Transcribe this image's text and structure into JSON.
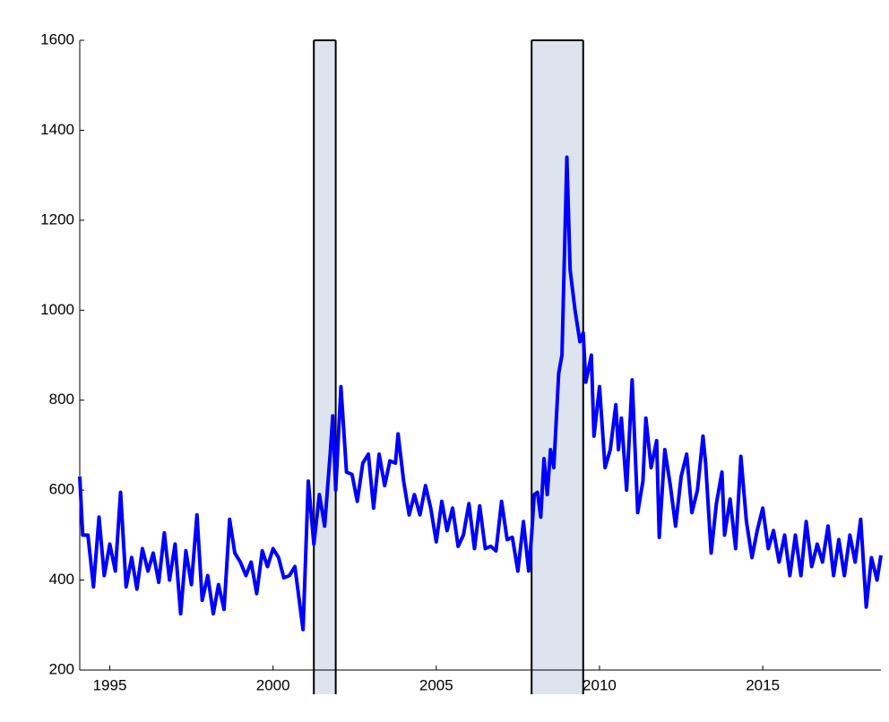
{
  "chart_data": {
    "type": "line",
    "x": [
      1994.08,
      1994.17,
      1994.33,
      1994.5,
      1994.67,
      1994.83,
      1995.0,
      1995.17,
      1995.33,
      1995.5,
      1995.67,
      1995.83,
      1996.0,
      1996.17,
      1996.33,
      1996.5,
      1996.67,
      1996.83,
      1997.0,
      1997.17,
      1997.33,
      1997.5,
      1997.67,
      1997.83,
      1998.0,
      1998.17,
      1998.33,
      1998.5,
      1998.67,
      1998.83,
      1999.0,
      1999.17,
      1999.33,
      1999.5,
      1999.67,
      1999.83,
      2000.0,
      2000.17,
      2000.33,
      2000.5,
      2000.67,
      2000.83,
      2000.92,
      2001.08,
      2001.25,
      2001.42,
      2001.58,
      2001.75,
      2001.83,
      2001.92,
      2002.08,
      2002.25,
      2002.42,
      2002.58,
      2002.75,
      2002.92,
      2003.08,
      2003.25,
      2003.42,
      2003.58,
      2003.75,
      2003.83,
      2004.0,
      2004.17,
      2004.33,
      2004.5,
      2004.67,
      2004.83,
      2005.0,
      2005.17,
      2005.33,
      2005.5,
      2005.67,
      2005.83,
      2006.0,
      2006.17,
      2006.33,
      2006.5,
      2006.67,
      2006.83,
      2007.0,
      2007.17,
      2007.33,
      2007.5,
      2007.67,
      2007.83,
      2007.92,
      2008.0,
      2008.1,
      2008.2,
      2008.3,
      2008.4,
      2008.5,
      2008.6,
      2008.75,
      2008.85,
      2009.0,
      2009.1,
      2009.25,
      2009.4,
      2009.5,
      2009.58,
      2009.75,
      2009.83,
      2010.0,
      2010.17,
      2010.33,
      2010.5,
      2010.58,
      2010.67,
      2010.83,
      2011.0,
      2011.17,
      2011.33,
      2011.42,
      2011.58,
      2011.75,
      2011.83,
      2012.0,
      2012.17,
      2012.33,
      2012.5,
      2012.67,
      2012.83,
      2013.0,
      2013.17,
      2013.25,
      2013.42,
      2013.58,
      2013.75,
      2013.83,
      2014.0,
      2014.17,
      2014.33,
      2014.5,
      2014.67,
      2014.83,
      2015.0,
      2015.17,
      2015.33,
      2015.5,
      2015.67,
      2015.83,
      2016.0,
      2016.17,
      2016.33,
      2016.5,
      2016.67,
      2016.83,
      2017.0,
      2017.17,
      2017.33,
      2017.5,
      2017.67,
      2017.83,
      2018.0,
      2018.17,
      2018.33,
      2018.5,
      2018.62
    ],
    "series": [
      {
        "color": "#0000ff",
        "values": [
          630,
          500,
          500,
          385,
          540,
          410,
          480,
          420,
          595,
          385,
          450,
          380,
          470,
          420,
          460,
          395,
          505,
          400,
          480,
          325,
          465,
          390,
          545,
          355,
          410,
          325,
          390,
          335,
          535,
          460,
          440,
          410,
          440,
          370,
          465,
          430,
          470,
          450,
          405,
          410,
          430,
          340,
          290,
          620,
          480,
          590,
          520,
          680,
          765,
          600,
          830,
          640,
          635,
          575,
          660,
          680,
          560,
          680,
          610,
          665,
          660,
          725,
          620,
          545,
          590,
          545,
          610,
          560,
          485,
          575,
          510,
          560,
          475,
          500,
          570,
          470,
          565,
          470,
          475,
          465,
          575,
          490,
          495,
          420,
          530,
          420,
          500,
          590,
          595,
          540,
          670,
          590,
          690,
          650,
          860,
          900,
          1340,
          1090,
          1000,
          930,
          950,
          840,
          900,
          720,
          830,
          650,
          690,
          790,
          690,
          760,
          600,
          845,
          550,
          620,
          760,
          650,
          710,
          495,
          690,
          610,
          520,
          630,
          680,
          550,
          600,
          720,
          660,
          460,
          570,
          640,
          500,
          580,
          470,
          675,
          530,
          450,
          510,
          560,
          470,
          510,
          440,
          500,
          410,
          500,
          410,
          530,
          430,
          480,
          440,
          520,
          410,
          490,
          410,
          500,
          440,
          535,
          340,
          450,
          400,
          455
        ]
      }
    ],
    "recessions": [
      [
        2001.25,
        2001.92
      ],
      [
        2007.92,
        2009.5
      ]
    ],
    "recession_color": "#dde4ee",
    "xlim": [
      1994.08,
      2018.62
    ],
    "xticks": [
      1995,
      2000,
      2005,
      2010,
      2015
    ],
    "ylim": [
      200,
      1600
    ],
    "yticks": [
      200,
      400,
      600,
      800,
      1000,
      1200,
      1400,
      1600
    ]
  }
}
